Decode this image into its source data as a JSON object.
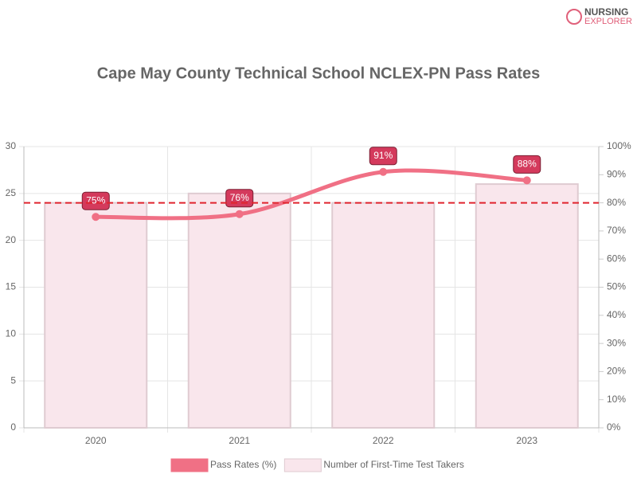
{
  "logo": {
    "line1": "NURSING",
    "line2": "EXPLORER"
  },
  "chart_data": {
    "type": "combo",
    "title": "Cape May County Technical School NCLEX-PN Pass Rates",
    "categories": [
      "2020",
      "2021",
      "2022",
      "2023"
    ],
    "series": [
      {
        "name": "Pass Rates (%)",
        "type": "line",
        "axis": "y2",
        "color": "#f07085",
        "values": [
          75,
          76,
          91,
          88
        ],
        "value_labels": [
          "75%",
          "76%",
          "91%",
          "88%"
        ]
      },
      {
        "name": "Number of First-Time Test Takers",
        "type": "bar",
        "color": "#f9e6ec",
        "border": "#dfcbd1",
        "values": [
          24,
          25,
          24,
          26
        ]
      }
    ],
    "ylim": [
      0,
      30
    ],
    "yticks": [
      0,
      5,
      10,
      15,
      20,
      25,
      30
    ],
    "y2lim": [
      0,
      100
    ],
    "y2ticks": [
      {
        "value": 0,
        "label": "0%"
      },
      {
        "value": 10,
        "label": "10%"
      },
      {
        "value": 20,
        "label": "20%"
      },
      {
        "value": 30,
        "label": "30%"
      },
      {
        "value": 40,
        "label": "40%"
      },
      {
        "value": 50,
        "label": "50%"
      },
      {
        "value": 60,
        "label": "60%"
      },
      {
        "value": 70,
        "label": "70%"
      },
      {
        "value": 80,
        "label": "80%"
      },
      {
        "value": 90,
        "label": "90%"
      },
      {
        "value": 100,
        "label": "100%"
      }
    ],
    "reference_line": {
      "value": 80,
      "axis": "y2",
      "color": "#e0242e"
    },
    "grid": true,
    "legend": "bottom"
  }
}
